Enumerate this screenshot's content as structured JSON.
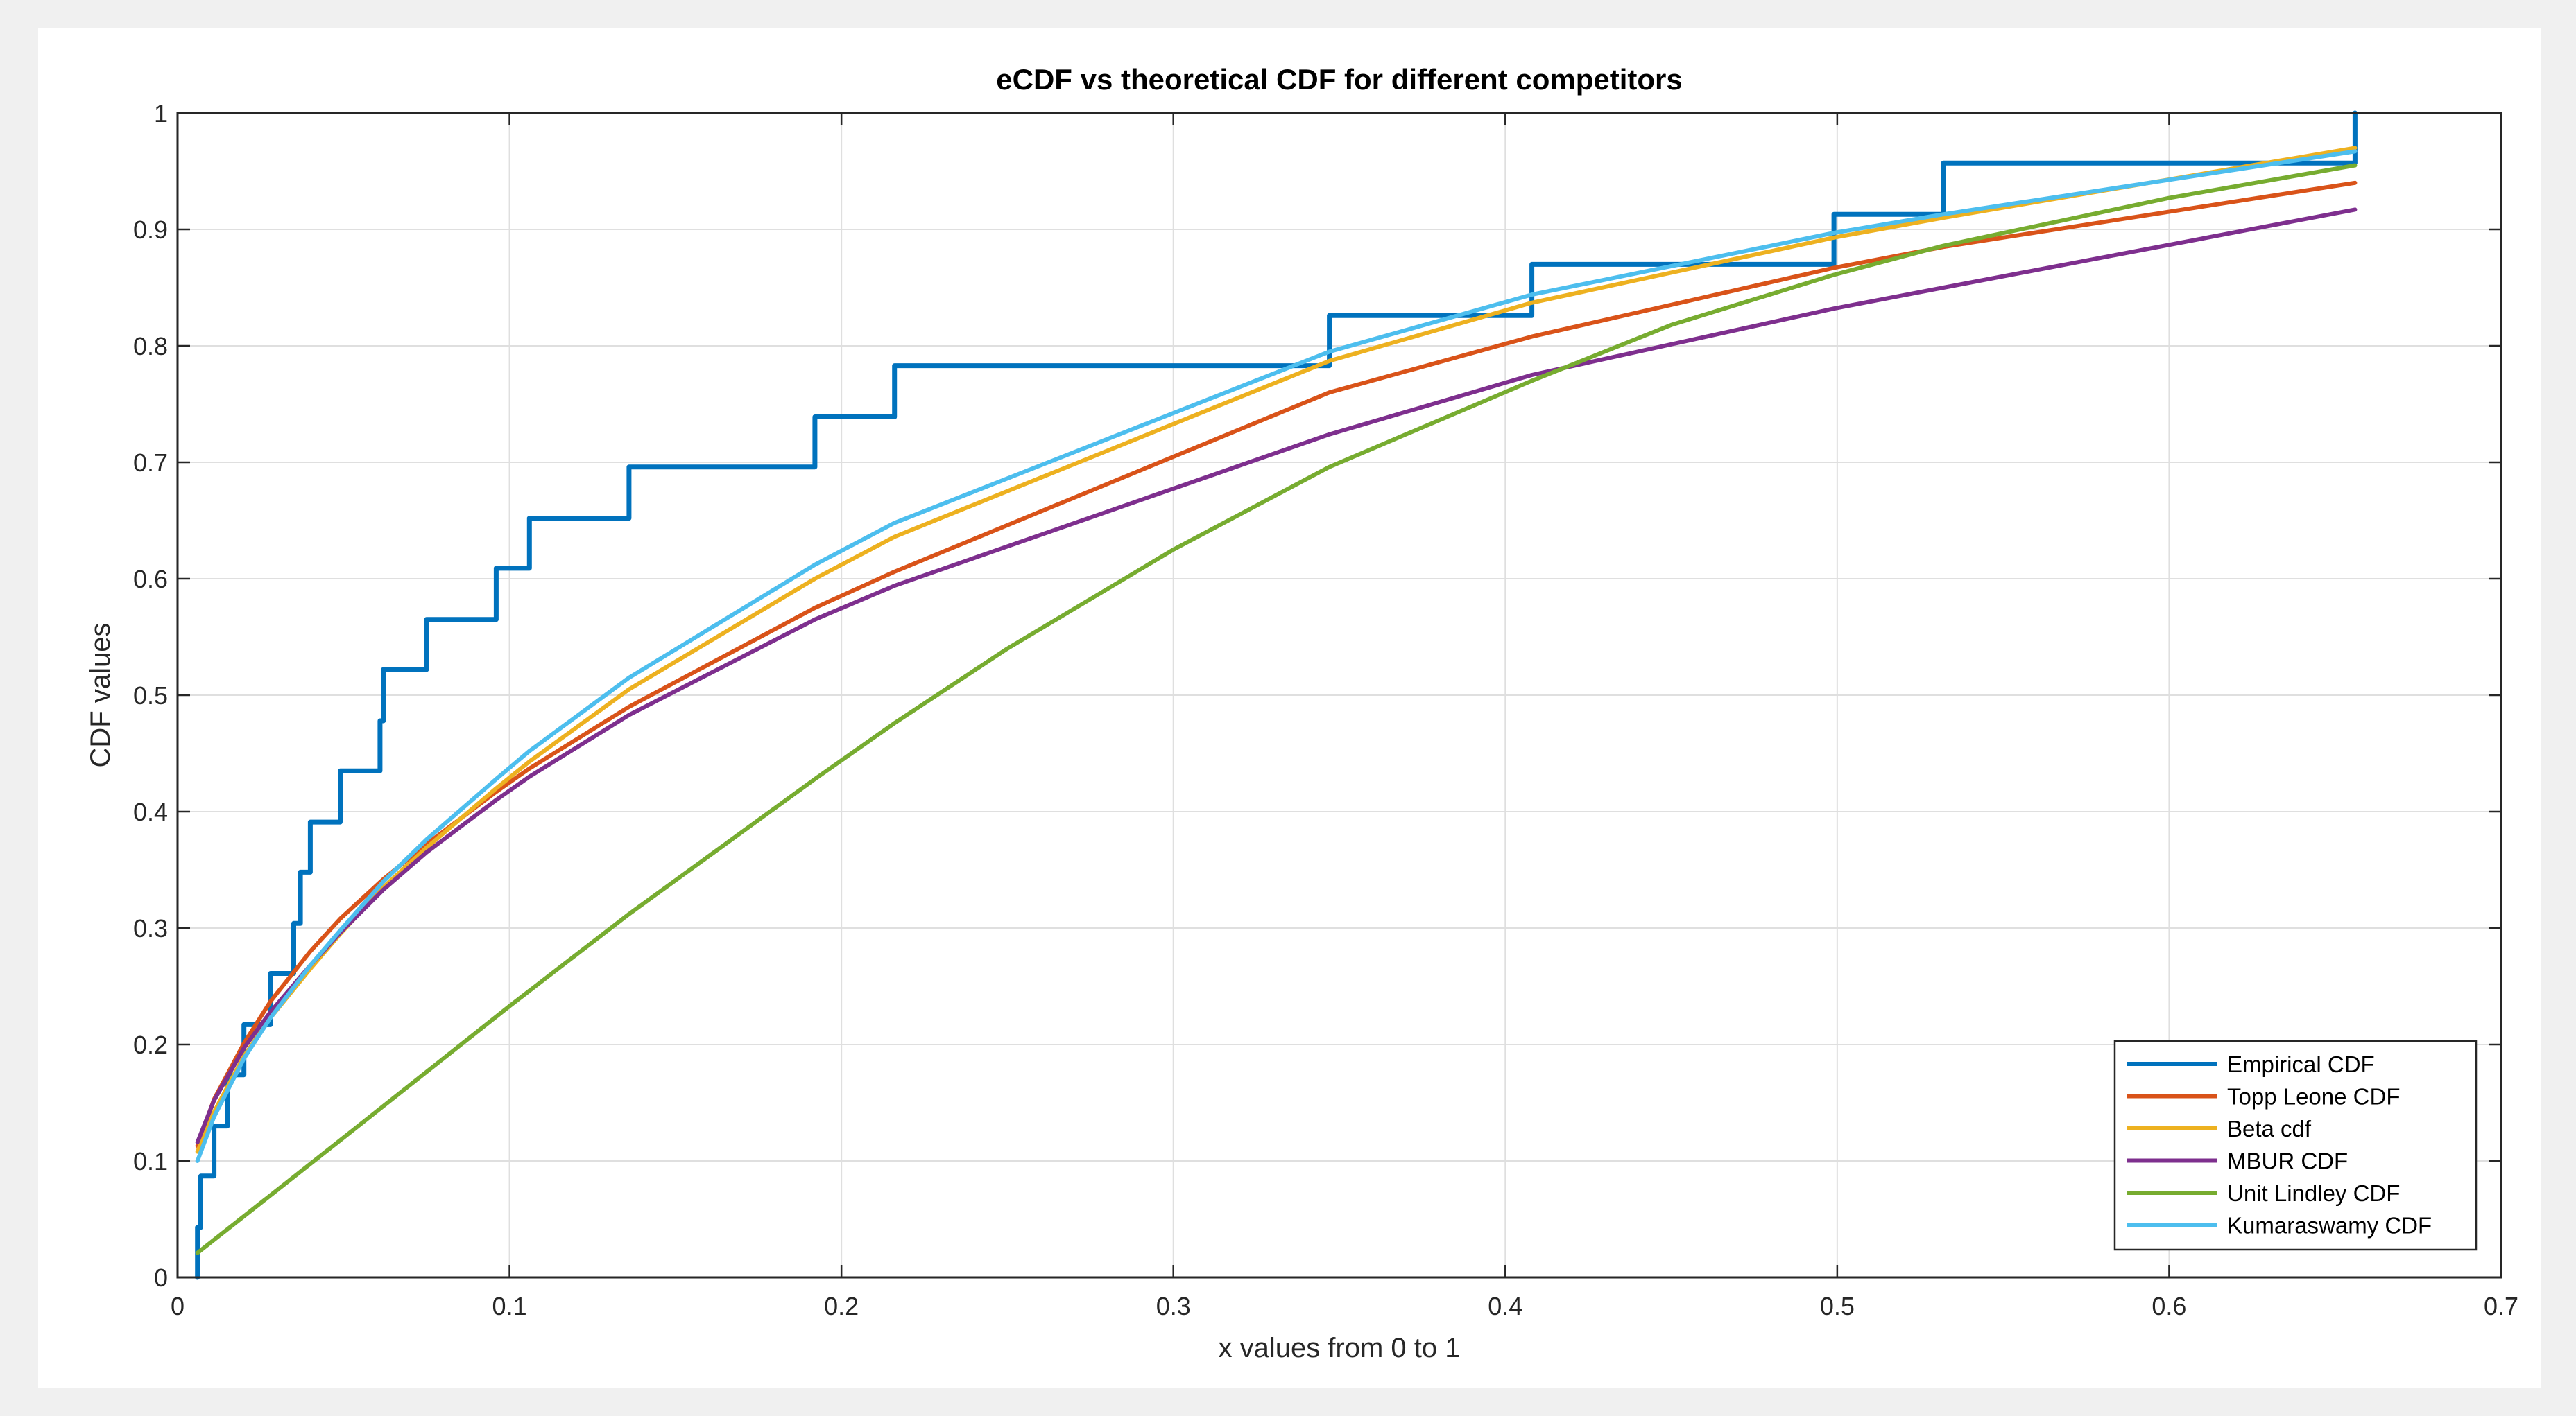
{
  "chart_data": {
    "type": "line",
    "title": "eCDF vs theoretical CDF for different competitors",
    "xlabel": "x values from 0 to 1",
    "ylabel": "CDF values",
    "xlim": [
      0,
      0.7
    ],
    "ylim": [
      0,
      1
    ],
    "xticks": [
      0,
      0.1,
      0.2,
      0.3,
      0.4,
      0.5,
      0.6,
      0.7
    ],
    "xtick_labels": [
      "0",
      "0.1",
      "0.2",
      "0.3",
      "0.4",
      "0.5",
      "0.6",
      "0.7"
    ],
    "yticks": [
      0,
      0.1,
      0.2,
      0.3,
      0.4,
      0.5,
      0.6,
      0.7,
      0.8,
      0.9,
      1
    ],
    "ytick_labels": [
      "0",
      "0.1",
      "0.2",
      "0.3",
      "0.4",
      "0.5",
      "0.6",
      "0.7",
      "0.8",
      "0.9",
      "1"
    ],
    "grid": true,
    "legend_position": "bottom-right",
    "series": [
      {
        "name": "Empirical CDF",
        "color": "#0072bd",
        "step": true,
        "points": [
          [
            0.006,
            0
          ],
          [
            0.006,
            0.043
          ],
          [
            0.007,
            0.043
          ],
          [
            0.007,
            0.087
          ],
          [
            0.011,
            0.087
          ],
          [
            0.011,
            0.13
          ],
          [
            0.015,
            0.13
          ],
          [
            0.015,
            0.174
          ],
          [
            0.02,
            0.174
          ],
          [
            0.02,
            0.217
          ],
          [
            0.028,
            0.217
          ],
          [
            0.028,
            0.261
          ],
          [
            0.035,
            0.261
          ],
          [
            0.035,
            0.304
          ],
          [
            0.037,
            0.304
          ],
          [
            0.037,
            0.348
          ],
          [
            0.04,
            0.348
          ],
          [
            0.04,
            0.391
          ],
          [
            0.049,
            0.391
          ],
          [
            0.049,
            0.435
          ],
          [
            0.061,
            0.435
          ],
          [
            0.061,
            0.478
          ],
          [
            0.062,
            0.478
          ],
          [
            0.062,
            0.522
          ],
          [
            0.075,
            0.522
          ],
          [
            0.075,
            0.565
          ],
          [
            0.096,
            0.565
          ],
          [
            0.096,
            0.609
          ],
          [
            0.106,
            0.609
          ],
          [
            0.106,
            0.652
          ],
          [
            0.136,
            0.652
          ],
          [
            0.136,
            0.696
          ],
          [
            0.192,
            0.696
          ],
          [
            0.192,
            0.739
          ],
          [
            0.216,
            0.739
          ],
          [
            0.216,
            0.783
          ],
          [
            0.347,
            0.783
          ],
          [
            0.347,
            0.826
          ],
          [
            0.408,
            0.826
          ],
          [
            0.408,
            0.87
          ],
          [
            0.499,
            0.87
          ],
          [
            0.499,
            0.913
          ],
          [
            0.532,
            0.913
          ],
          [
            0.532,
            0.957
          ],
          [
            0.656,
            0.957
          ],
          [
            0.656,
            1.0
          ]
        ]
      },
      {
        "name": "Topp Leone CDF",
        "color": "#d95319",
        "points": [
          [
            0.006,
            0.113
          ],
          [
            0.011,
            0.153
          ],
          [
            0.02,
            0.201
          ],
          [
            0.028,
            0.237
          ],
          [
            0.04,
            0.28
          ],
          [
            0.049,
            0.308
          ],
          [
            0.062,
            0.342
          ],
          [
            0.075,
            0.372
          ],
          [
            0.096,
            0.417
          ],
          [
            0.106,
            0.437
          ],
          [
            0.136,
            0.49
          ],
          [
            0.192,
            0.575
          ],
          [
            0.216,
            0.606
          ],
          [
            0.347,
            0.76
          ],
          [
            0.408,
            0.808
          ],
          [
            0.499,
            0.867
          ],
          [
            0.532,
            0.885
          ],
          [
            0.656,
            0.94
          ]
        ]
      },
      {
        "name": "Beta cdf",
        "color": "#edb120",
        "points": [
          [
            0.006,
            0.108
          ],
          [
            0.011,
            0.142
          ],
          [
            0.02,
            0.19
          ],
          [
            0.028,
            0.223
          ],
          [
            0.04,
            0.265
          ],
          [
            0.049,
            0.295
          ],
          [
            0.062,
            0.335
          ],
          [
            0.075,
            0.369
          ],
          [
            0.096,
            0.42
          ],
          [
            0.106,
            0.443
          ],
          [
            0.136,
            0.505
          ],
          [
            0.192,
            0.6
          ],
          [
            0.216,
            0.636
          ],
          [
            0.347,
            0.787
          ],
          [
            0.408,
            0.837
          ],
          [
            0.499,
            0.893
          ],
          [
            0.532,
            0.91
          ],
          [
            0.656,
            0.97
          ]
        ]
      },
      {
        "name": "MBUR CDF",
        "color": "#7e2f8e",
        "points": [
          [
            0.006,
            0.116
          ],
          [
            0.011,
            0.152
          ],
          [
            0.02,
            0.197
          ],
          [
            0.028,
            0.228
          ],
          [
            0.04,
            0.268
          ],
          [
            0.049,
            0.296
          ],
          [
            0.062,
            0.333
          ],
          [
            0.075,
            0.365
          ],
          [
            0.096,
            0.41
          ],
          [
            0.106,
            0.43
          ],
          [
            0.136,
            0.483
          ],
          [
            0.192,
            0.565
          ],
          [
            0.216,
            0.594
          ],
          [
            0.347,
            0.724
          ],
          [
            0.408,
            0.775
          ],
          [
            0.499,
            0.832
          ],
          [
            0.532,
            0.85
          ],
          [
            0.656,
            0.917
          ]
        ]
      },
      {
        "name": "Unit Lindley CDF",
        "color": "#77ac30",
        "points": [
          [
            0.006,
            0.021
          ],
          [
            0.05,
            0.12
          ],
          [
            0.1,
            0.233
          ],
          [
            0.136,
            0.312
          ],
          [
            0.192,
            0.428
          ],
          [
            0.216,
            0.476
          ],
          [
            0.25,
            0.54
          ],
          [
            0.3,
            0.625
          ],
          [
            0.347,
            0.696
          ],
          [
            0.408,
            0.77
          ],
          [
            0.45,
            0.818
          ],
          [
            0.499,
            0.861
          ],
          [
            0.532,
            0.886
          ],
          [
            0.6,
            0.927
          ],
          [
            0.656,
            0.955
          ]
        ]
      },
      {
        "name": "Kumaraswamy CDF",
        "color": "#4dbeee",
        "points": [
          [
            0.006,
            0.1
          ],
          [
            0.011,
            0.138
          ],
          [
            0.02,
            0.188
          ],
          [
            0.028,
            0.223
          ],
          [
            0.04,
            0.268
          ],
          [
            0.049,
            0.298
          ],
          [
            0.062,
            0.34
          ],
          [
            0.075,
            0.376
          ],
          [
            0.096,
            0.428
          ],
          [
            0.106,
            0.452
          ],
          [
            0.136,
            0.515
          ],
          [
            0.192,
            0.612
          ],
          [
            0.216,
            0.648
          ],
          [
            0.347,
            0.795
          ],
          [
            0.408,
            0.844
          ],
          [
            0.499,
            0.897
          ],
          [
            0.532,
            0.913
          ],
          [
            0.656,
            0.967
          ]
        ]
      }
    ]
  }
}
